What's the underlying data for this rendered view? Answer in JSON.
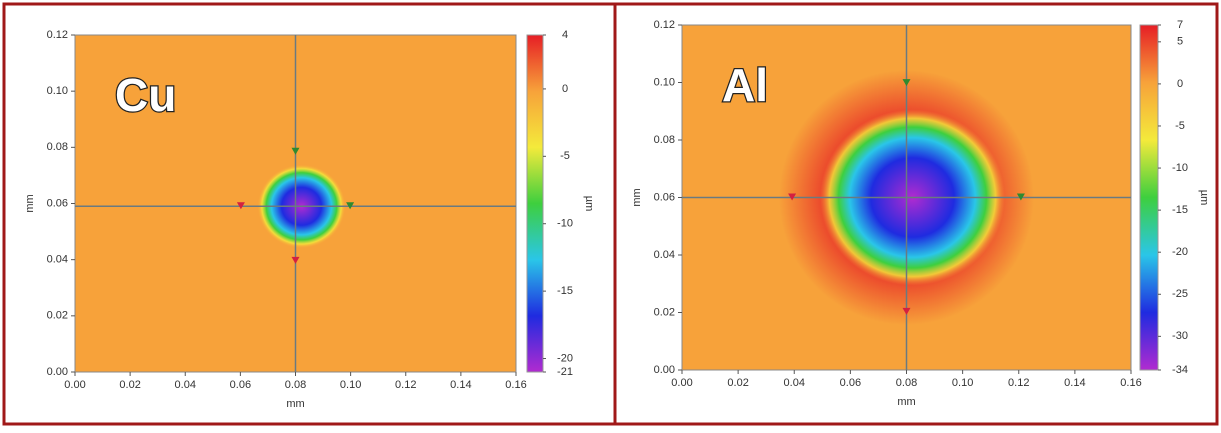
{
  "chart_data": [
    {
      "type": "heatmap",
      "label": "Cu",
      "xlabel": "mm",
      "ylabel": "mm",
      "colorbar_label": "µm",
      "xlim": [
        0,
        0.16
      ],
      "ylim": [
        0,
        0.12
      ],
      "xticks": [
        {
          "value": 0,
          "label": "0.00"
        },
        {
          "value": 0.02,
          "label": "0.02"
        },
        {
          "value": 0.04,
          "label": "0.04"
        },
        {
          "value": 0.06,
          "label": "0.06"
        },
        {
          "value": 0.08,
          "label": "0.08"
        },
        {
          "value": 0.1,
          "label": "0.10"
        },
        {
          "value": 0.12,
          "label": "0.12"
        },
        {
          "value": 0.14,
          "label": "0.14"
        },
        {
          "value": 0.16,
          "label": "0.16"
        }
      ],
      "yticks": [
        {
          "value": 0,
          "label": "0.00"
        },
        {
          "value": 0.02,
          "label": "0.02"
        },
        {
          "value": 0.04,
          "label": "0.04"
        },
        {
          "value": 0.06,
          "label": "0.06"
        },
        {
          "value": 0.08,
          "label": "0.08"
        },
        {
          "value": 0.1,
          "label": "0.10"
        },
        {
          "value": 0.12,
          "label": "0.12"
        }
      ],
      "clim": [
        -21,
        4
      ],
      "cticks": [
        4,
        0,
        -5,
        -10,
        -15,
        -20,
        -21
      ],
      "colormap": [
        "#e61e25",
        "#f7a23a",
        "#f4ea3b",
        "#3ecf3e",
        "#2ac6e8",
        "#1f2be0",
        "#b12bd0"
      ],
      "crosshair": {
        "x": 0.08,
        "y": 0.059
      }
    },
    {
      "type": "heatmap",
      "label": "Al",
      "xlabel": "mm",
      "ylabel": "mm",
      "colorbar_label": "µm",
      "xlim": [
        0,
        0.16
      ],
      "ylim": [
        0,
        0.12
      ],
      "xticks": [
        {
          "value": 0,
          "label": "0.00"
        },
        {
          "value": 0.02,
          "label": "0.02"
        },
        {
          "value": 0.04,
          "label": "0.04"
        },
        {
          "value": 0.06,
          "label": "0.06"
        },
        {
          "value": 0.08,
          "label": "0.08"
        },
        {
          "value": 0.1,
          "label": "0.10"
        },
        {
          "value": 0.12,
          "label": "0.12"
        },
        {
          "value": 0.14,
          "label": "0.14"
        },
        {
          "value": 0.16,
          "label": "0.16"
        }
      ],
      "yticks": [
        {
          "value": 0,
          "label": "0.00"
        },
        {
          "value": 0.02,
          "label": "0.02"
        },
        {
          "value": 0.04,
          "label": "0.04"
        },
        {
          "value": 0.06,
          "label": "0.06"
        },
        {
          "value": 0.08,
          "label": "0.08"
        },
        {
          "value": 0.1,
          "label": "0.10"
        },
        {
          "value": 0.12,
          "label": "0.12"
        }
      ],
      "clim": [
        -34,
        7
      ],
      "cticks": [
        7,
        5,
        0,
        -5,
        -10,
        -15,
        -20,
        -25,
        -30,
        -34
      ],
      "colormap": [
        "#e61e25",
        "#f7a23a",
        "#f4ea3b",
        "#3ecf3e",
        "#2ac6e8",
        "#1f2be0",
        "#b12bd0"
      ],
      "crosshair": {
        "x": 0.08,
        "y": 0.06
      }
    }
  ]
}
